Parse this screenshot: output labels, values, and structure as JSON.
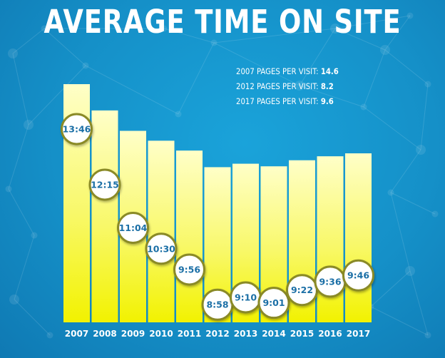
{
  "title": "AVERAGE TIME ON SITE",
  "stats": [
    {
      "label": "2007 PAGES PER VISIT:",
      "value": "14.6"
    },
    {
      "label": "2012 PAGES PER VISIT:",
      "value": "8.2"
    },
    {
      "label": "2017 PAGES PER VISIT:",
      "value": "9.6"
    }
  ],
  "colors": {
    "bar_top": "#ffffc8",
    "bar_bottom": "#f2f200",
    "bubble_fill": "#ffffff",
    "bubble_ring": "#8a8a28",
    "bubble_text": "#1b6fa6",
    "year_text": "#ffffff"
  },
  "chart_data": {
    "type": "bar",
    "title": "AVERAGE TIME ON SITE",
    "categories": [
      "2007",
      "2008",
      "2009",
      "2010",
      "2011",
      "2012",
      "2013",
      "2014",
      "2015",
      "2016",
      "2017"
    ],
    "values": [
      13.77,
      12.25,
      11.07,
      10.5,
      9.93,
      8.97,
      9.17,
      9.02,
      9.37,
      9.6,
      9.77
    ],
    "labels": [
      "13:46",
      "12:15",
      "11:04",
      "10:30",
      "9:56",
      "8:58",
      "9:10",
      "9:01",
      "9:22",
      "9:36",
      "9:46"
    ],
    "unit": "minutes",
    "xlabel": "",
    "ylabel": ""
  }
}
